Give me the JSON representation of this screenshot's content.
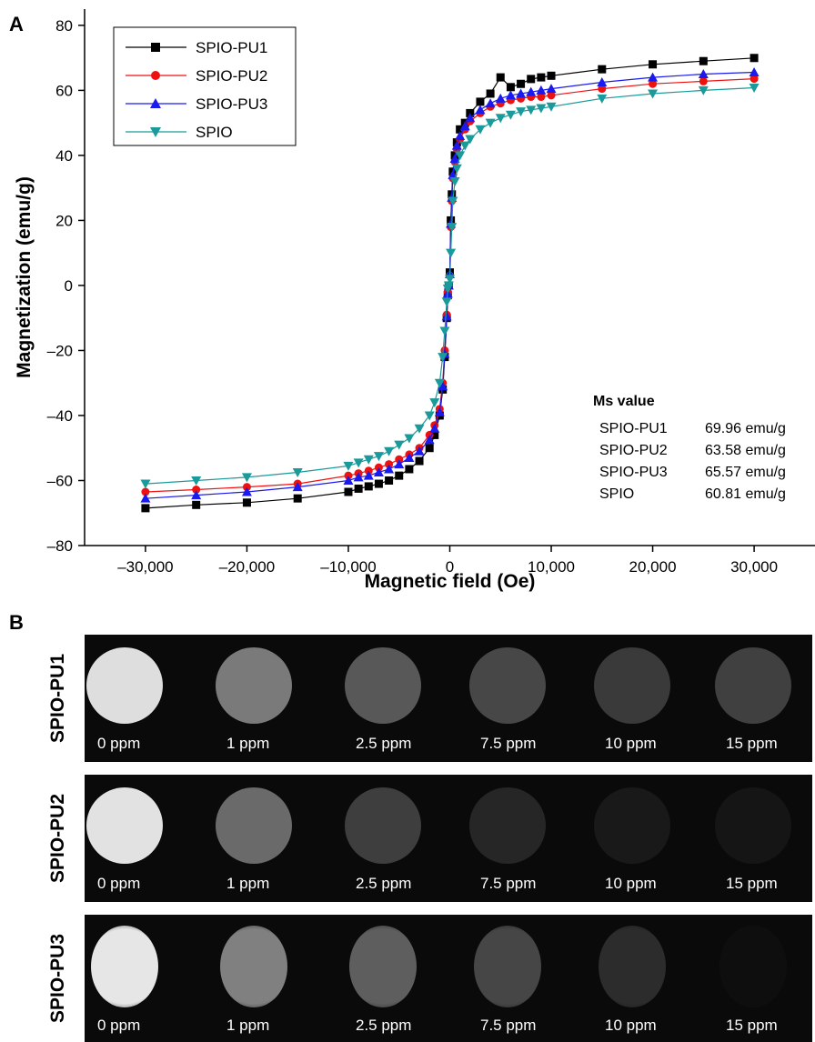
{
  "panel_a_letter": "A",
  "panel_b_letter": "B",
  "chart_data": {
    "type": "line",
    "xlabel": "Magnetic field (Oe)",
    "ylabel": "Magnetization (emu/g)",
    "xlim": [
      -36000,
      36000
    ],
    "ylim": [
      -80,
      85
    ],
    "xticks": [
      -30000,
      -20000,
      -10000,
      0,
      10000,
      20000,
      30000
    ],
    "xtick_labels": [
      "–30,000",
      "–20,000",
      "–10,000",
      "0",
      "10,000",
      "20,000",
      "30,000"
    ],
    "yticks": [
      -80,
      -60,
      -40,
      -20,
      0,
      20,
      40,
      60,
      80
    ],
    "ytick_labels": [
      "–80",
      "–60",
      "–40",
      "–20",
      "0",
      "20",
      "40",
      "60",
      "80"
    ],
    "legend_position": "top-left",
    "annotation": {
      "title": "Ms value",
      "rows": [
        {
          "name": "SPIO-PU1",
          "value": "69.96 emu/g"
        },
        {
          "name": "SPIO-PU2",
          "value": "63.58 emu/g"
        },
        {
          "name": "SPIO-PU3",
          "value": "65.57 emu/g"
        },
        {
          "name": "SPIO",
          "value": "60.81 emu/g"
        }
      ]
    },
    "series": [
      {
        "name": "SPIO-PU1",
        "color": "#000000",
        "marker": "square",
        "ms": 69.96,
        "x": [
          -30000,
          -25000,
          -20000,
          -15000,
          -10000,
          -9000,
          -8000,
          -7000,
          -6000,
          -5000,
          -4000,
          -3000,
          -2000,
          -1500,
          -1000,
          -700,
          -500,
          -300,
          -200,
          -100,
          0,
          100,
          200,
          300,
          500,
          700,
          1000,
          1500,
          2000,
          3000,
          4000,
          5000,
          6000,
          7000,
          8000,
          9000,
          10000,
          15000,
          20000,
          25000,
          30000
        ],
        "y": [
          -68.5,
          -67.5,
          -66.8,
          -65.5,
          -63.5,
          -62.5,
          -61.8,
          -61,
          -60,
          -58.5,
          -56.5,
          -54,
          -50,
          -46,
          -40,
          -32,
          -22,
          -10,
          -3,
          0,
          4,
          20,
          28,
          35,
          40,
          44,
          48,
          50,
          53,
          56.5,
          59,
          64,
          61,
          62,
          63.5,
          64,
          64.5,
          66.5,
          68,
          69,
          69.96
        ]
      },
      {
        "name": "SPIO-PU2",
        "color": "#ee1111",
        "marker": "circle",
        "ms": 63.58,
        "x": [
          -30000,
          -25000,
          -20000,
          -15000,
          -10000,
          -9000,
          -8000,
          -7000,
          -6000,
          -5000,
          -4000,
          -3000,
          -2000,
          -1500,
          -1000,
          -700,
          -500,
          -300,
          -200,
          -100,
          0,
          100,
          200,
          300,
          500,
          700,
          1000,
          1500,
          2000,
          3000,
          4000,
          5000,
          6000,
          7000,
          8000,
          9000,
          10000,
          15000,
          20000,
          25000,
          30000
        ],
        "y": [
          -63.5,
          -62.8,
          -62,
          -61,
          -58.5,
          -57.8,
          -57,
          -56,
          -55,
          -53.5,
          -52,
          -50,
          -46,
          -43,
          -38,
          -30,
          -20,
          -9,
          -2,
          0,
          3,
          18,
          26,
          33,
          38,
          42,
          45,
          48,
          50.5,
          53,
          55,
          56,
          57,
          57.5,
          58,
          58,
          58.5,
          60.5,
          62,
          62.8,
          63.58
        ]
      },
      {
        "name": "SPIO-PU3",
        "color": "#1a1aee",
        "marker": "triangle-up",
        "ms": 65.57,
        "x": [
          -30000,
          -25000,
          -20000,
          -15000,
          -10000,
          -9000,
          -8000,
          -7000,
          -6000,
          -5000,
          -4000,
          -3000,
          -2000,
          -1500,
          -1000,
          -700,
          -500,
          -300,
          -200,
          -100,
          0,
          100,
          200,
          300,
          500,
          700,
          1000,
          1500,
          2000,
          3000,
          4000,
          5000,
          6000,
          7000,
          8000,
          9000,
          10000,
          15000,
          20000,
          25000,
          30000
        ],
        "y": [
          -65.5,
          -64.5,
          -63.5,
          -62,
          -60,
          -59,
          -58.5,
          -57.5,
          -56.5,
          -55,
          -53,
          -51,
          -47.5,
          -44,
          -39,
          -31,
          -21,
          -9.5,
          -2.5,
          0,
          3.5,
          19,
          27,
          34,
          39,
          43,
          46,
          49,
          51.5,
          54,
          56,
          57.5,
          58.5,
          59,
          59.5,
          60,
          60.5,
          62.5,
          64,
          65,
          65.57
        ]
      },
      {
        "name": "SPIO",
        "color": "#1a9a9a",
        "marker": "triangle-down",
        "ms": 60.81,
        "x": [
          -30000,
          -25000,
          -20000,
          -15000,
          -10000,
          -9000,
          -8000,
          -7000,
          -6000,
          -5000,
          -4000,
          -3000,
          -2000,
          -1500,
          -1000,
          -700,
          -500,
          -300,
          -200,
          -100,
          0,
          100,
          200,
          300,
          500,
          700,
          1000,
          1500,
          2000,
          3000,
          4000,
          5000,
          6000,
          7000,
          8000,
          9000,
          10000,
          15000,
          20000,
          25000,
          30000
        ],
        "y": [
          -61,
          -60,
          -59,
          -57.5,
          -55.5,
          -54.5,
          -53.5,
          -52.5,
          -51,
          -49,
          -47,
          -44,
          -40,
          -36,
          -30,
          -22,
          -14,
          -5,
          -1,
          0,
          2,
          10,
          18,
          26,
          32,
          36,
          40,
          43,
          45,
          48,
          50,
          51.5,
          52.5,
          53.5,
          54,
          54.5,
          55,
          57.5,
          59,
          60,
          60.81
        ]
      }
    ]
  },
  "mri": {
    "rows": [
      {
        "label": "SPIO-PU1",
        "phantoms": [
          {
            "conc": "0 ppm",
            "gray": "#dedede"
          },
          {
            "conc": "1 ppm",
            "gray": "#7a7a7a"
          },
          {
            "conc": "2.5 ppm",
            "gray": "#585858"
          },
          {
            "conc": "7.5 ppm",
            "gray": "#474747"
          },
          {
            "conc": "10 ppm",
            "gray": "#3a3a3a"
          },
          {
            "conc": "15 ppm",
            "gray": "#404040"
          }
        ]
      },
      {
        "label": "SPIO-PU2",
        "phantoms": [
          {
            "conc": "0 ppm",
            "gray": "#e2e2e2"
          },
          {
            "conc": "1 ppm",
            "gray": "#6a6a6a"
          },
          {
            "conc": "2.5 ppm",
            "gray": "#3e3e3e"
          },
          {
            "conc": "7.5 ppm",
            "gray": "#262626"
          },
          {
            "conc": "10 ppm",
            "gray": "#191919"
          },
          {
            "conc": "15 ppm",
            "gray": "#151515"
          }
        ]
      },
      {
        "label": "SPIO-PU3",
        "phantoms": [
          {
            "conc": "0 ppm",
            "gray": "#e6e6e6"
          },
          {
            "conc": "1 ppm",
            "gray": "#808080"
          },
          {
            "conc": "2.5 ppm",
            "gray": "#5e5e5e"
          },
          {
            "conc": "7.5 ppm",
            "gray": "#464646"
          },
          {
            "conc": "10 ppm",
            "gray": "#2c2c2c"
          },
          {
            "conc": "15 ppm",
            "gray": "#0e0e0e"
          }
        ]
      }
    ]
  }
}
